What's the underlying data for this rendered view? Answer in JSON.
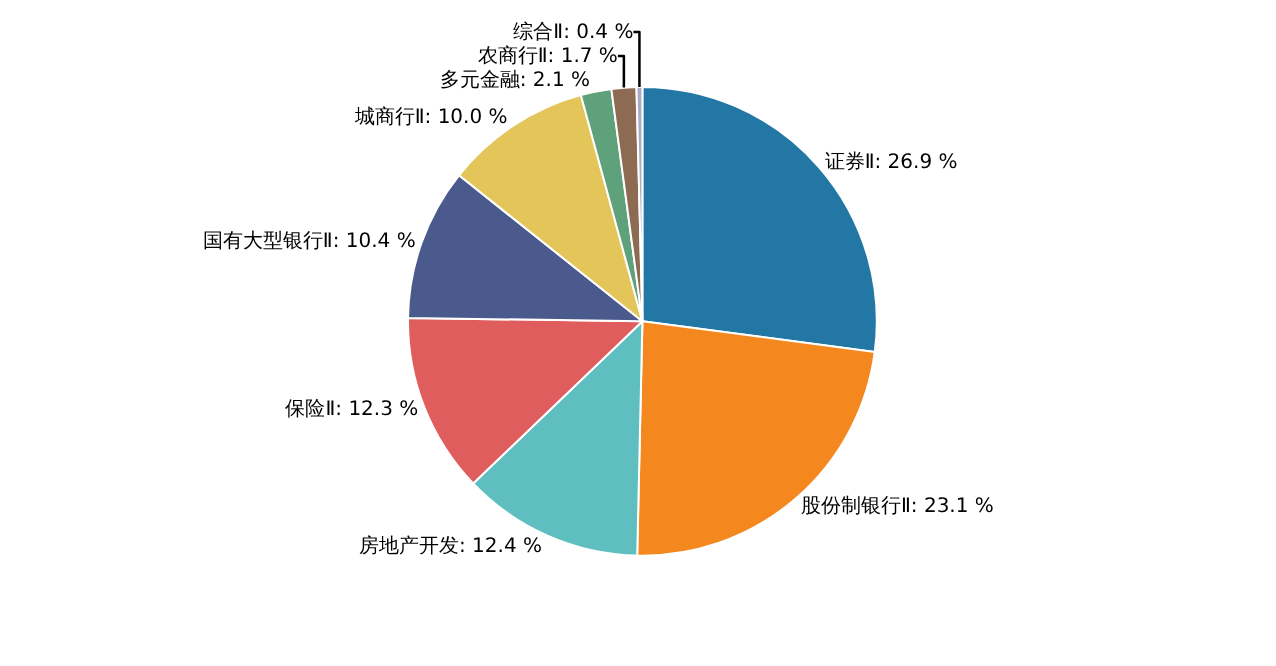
{
  "chart_data": {
    "type": "pie",
    "categories": [
      "证券Ⅱ",
      "股份制银行Ⅱ",
      "房地产开发",
      "保险Ⅱ",
      "国有大型银行Ⅱ",
      "城商行Ⅱ",
      "多元金融",
      "农商行Ⅱ",
      "综合Ⅱ"
    ],
    "values": [
      26.9,
      23.1,
      12.4,
      12.3,
      10.4,
      10.0,
      2.1,
      1.7,
      0.4
    ],
    "colors": [
      "#2377a4",
      "#f5871f",
      "#5fbfc0",
      "#e05d5d",
      "#4b5a8d",
      "#e3c55a",
      "#5fa17a",
      "#8c6b52",
      "#a9a9c8"
    ],
    "value_labels": [
      "26.9 %",
      "23.1 %",
      "12.4 %",
      "12.3 %",
      "10.4 %",
      "10.0 %",
      "2.1 %",
      "1.7 %",
      "0.4 %"
    ],
    "legend": false
  }
}
